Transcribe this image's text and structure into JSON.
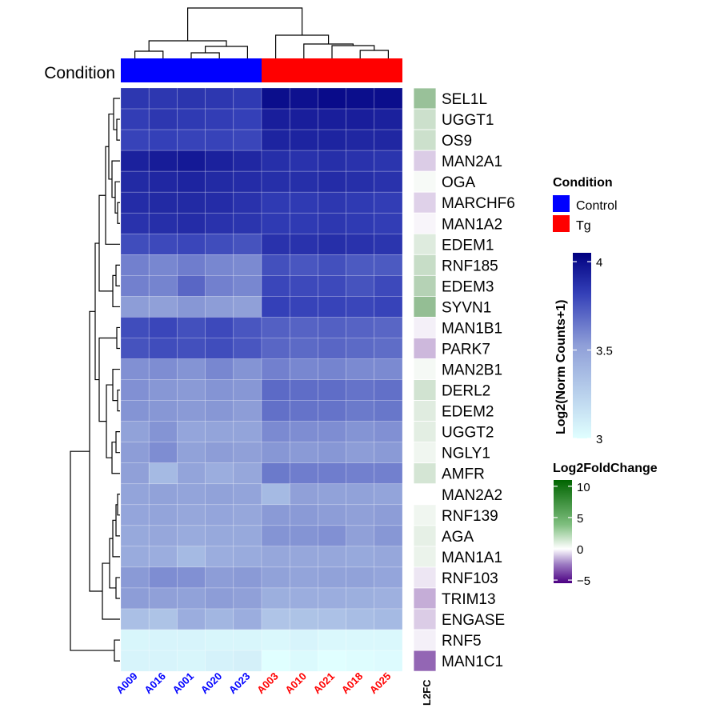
{
  "chart_data": {
    "type": "heatmap",
    "annotation_label": "Condition",
    "l2fc_column_label": "L2FC",
    "samples": [
      {
        "name": "A009",
        "group": "Control"
      },
      {
        "name": "A016",
        "group": "Control"
      },
      {
        "name": "A001",
        "group": "Control"
      },
      {
        "name": "A020",
        "group": "Control"
      },
      {
        "name": "A023",
        "group": "Control"
      },
      {
        "name": "A003",
        "group": "Tg"
      },
      {
        "name": "A010",
        "group": "Tg"
      },
      {
        "name": "A021",
        "group": "Tg"
      },
      {
        "name": "A018",
        "group": "Tg"
      },
      {
        "name": "A025",
        "group": "Tg"
      }
    ],
    "genes": [
      "SEL1L",
      "UGGT1",
      "OS9",
      "MAN2A1",
      "OGA",
      "MARCHF6",
      "MAN1A2",
      "EDEM1",
      "RNF185",
      "EDEM3",
      "SYVN1",
      "MAN1B1",
      "PARK7",
      "MAN2B1",
      "DERL2",
      "EDEM2",
      "UGGT2",
      "NGLY1",
      "AMFR",
      "MAN2A2",
      "RNF139",
      "AGA",
      "MAN1A1",
      "RNF103",
      "TRIM13",
      "ENGASE",
      "RNF5",
      "MAN1C1"
    ],
    "values": [
      [
        3.85,
        3.85,
        3.86,
        3.85,
        3.84,
        4.0,
        3.99,
        4.01,
        4.0,
        4.0
      ],
      [
        3.83,
        3.85,
        3.84,
        3.83,
        3.82,
        3.94,
        3.94,
        3.94,
        3.94,
        3.93
      ],
      [
        3.81,
        3.82,
        3.81,
        3.81,
        3.8,
        3.92,
        3.92,
        3.92,
        3.91,
        3.91
      ],
      [
        3.93,
        3.95,
        3.96,
        3.93,
        3.91,
        3.88,
        3.87,
        3.88,
        3.87,
        3.86
      ],
      [
        3.9,
        3.91,
        3.92,
        3.9,
        3.89,
        3.88,
        3.88,
        3.89,
        3.88,
        3.87
      ],
      [
        3.89,
        3.9,
        3.9,
        3.89,
        3.87,
        3.84,
        3.84,
        3.85,
        3.84,
        3.83
      ],
      [
        3.87,
        3.88,
        3.89,
        3.87,
        3.86,
        3.84,
        3.84,
        3.85,
        3.84,
        3.83
      ],
      [
        3.78,
        3.79,
        3.8,
        3.78,
        3.76,
        3.87,
        3.87,
        3.88,
        3.87,
        3.86
      ],
      [
        3.62,
        3.6,
        3.63,
        3.6,
        3.59,
        3.77,
        3.75,
        3.77,
        3.74,
        3.74
      ],
      [
        3.62,
        3.61,
        3.7,
        3.62,
        3.6,
        3.8,
        3.79,
        3.79,
        3.76,
        3.79
      ],
      [
        3.53,
        3.52,
        3.55,
        3.53,
        3.52,
        3.82,
        3.81,
        3.81,
        3.8,
        3.81
      ],
      [
        3.78,
        3.8,
        3.77,
        3.79,
        3.75,
        3.72,
        3.71,
        3.72,
        3.71,
        3.7
      ],
      [
        3.76,
        3.78,
        3.77,
        3.78,
        3.75,
        3.7,
        3.69,
        3.7,
        3.69,
        3.68
      ],
      [
        3.57,
        3.58,
        3.56,
        3.6,
        3.56,
        3.62,
        3.6,
        3.61,
        3.59,
        3.59
      ],
      [
        3.57,
        3.55,
        3.54,
        3.56,
        3.55,
        3.69,
        3.68,
        3.68,
        3.66,
        3.67
      ],
      [
        3.56,
        3.55,
        3.54,
        3.55,
        3.53,
        3.67,
        3.66,
        3.66,
        3.64,
        3.65
      ],
      [
        3.51,
        3.56,
        3.49,
        3.5,
        3.5,
        3.59,
        3.58,
        3.58,
        3.56,
        3.57
      ],
      [
        3.53,
        3.58,
        3.51,
        3.53,
        3.52,
        3.55,
        3.54,
        3.55,
        3.53,
        3.54
      ],
      [
        3.52,
        3.38,
        3.5,
        3.45,
        3.48,
        3.64,
        3.63,
        3.63,
        3.62,
        3.62
      ],
      [
        3.5,
        3.51,
        3.5,
        3.51,
        3.5,
        3.38,
        3.52,
        3.51,
        3.51,
        3.5
      ],
      [
        3.49,
        3.5,
        3.48,
        3.49,
        3.48,
        3.54,
        3.54,
        3.53,
        3.52,
        3.53
      ],
      [
        3.47,
        3.48,
        3.46,
        3.47,
        3.47,
        3.56,
        3.56,
        3.57,
        3.52,
        3.55
      ],
      [
        3.46,
        3.45,
        3.38,
        3.45,
        3.46,
        3.48,
        3.48,
        3.48,
        3.47,
        3.48
      ],
      [
        3.54,
        3.58,
        3.57,
        3.53,
        3.54,
        3.51,
        3.5,
        3.51,
        3.51,
        3.49
      ],
      [
        3.53,
        3.52,
        3.51,
        3.53,
        3.52,
        3.44,
        3.45,
        3.45,
        3.44,
        3.43
      ],
      [
        3.35,
        3.33,
        3.45,
        3.4,
        3.45,
        3.32,
        3.33,
        3.34,
        3.36,
        3.38
      ],
      [
        3.05,
        3.06,
        3.06,
        3.05,
        3.05,
        3.04,
        3.06,
        3.04,
        3.04,
        3.04
      ],
      [
        3.06,
        3.06,
        3.05,
        3.07,
        3.08,
        2.98,
        3.03,
        3.0,
        3.01,
        3.02
      ]
    ],
    "l2fc": [
      4.0,
      2.0,
      2.0,
      -1.0,
      0.3,
      -0.9,
      -0.2,
      1.3,
      2.2,
      2.9,
      4.2,
      -0.3,
      -1.4,
      0.4,
      1.8,
      1.2,
      1.1,
      0.6,
      1.7,
      0.0,
      0.6,
      1.0,
      0.8,
      -0.5,
      -1.6,
      -1.0,
      -0.3,
      -3.0
    ],
    "legends": {
      "condition": {
        "title": "Condition",
        "entries": [
          {
            "label": "Control",
            "color": "#0000FF"
          },
          {
            "label": "Tg",
            "color": "#FF0000"
          }
        ]
      },
      "expression": {
        "title": "Log2(Norm Counts+1)",
        "min": 3,
        "max": 4.05,
        "ticks": [
          {
            "value": 4,
            "label": "4"
          },
          {
            "value": 3.5,
            "label": "3.5"
          },
          {
            "value": 3,
            "label": "3"
          }
        ],
        "low_color": "#E0FFFF",
        "high_color": "#000080"
      },
      "l2fc": {
        "title": "Log2FoldChange",
        "min": -5.5,
        "max": 11,
        "ticks": [
          {
            "value": 10,
            "label": "10"
          },
          {
            "value": 5,
            "label": "5"
          },
          {
            "value": 0,
            "label": "0"
          },
          {
            "value": -5,
            "label": "−5"
          }
        ],
        "neg_color": "#4B0082",
        "mid_color": "#FFFFFF",
        "pos_color": "#006400"
      }
    },
    "colors": {
      "control": "#0000FF",
      "tg": "#FF0000"
    }
  }
}
